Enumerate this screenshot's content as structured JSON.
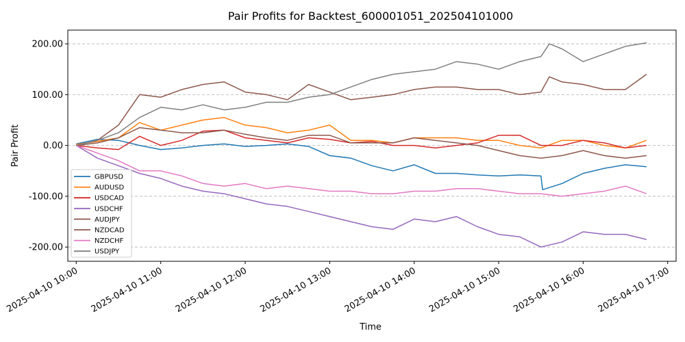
{
  "chart_data": {
    "type": "line",
    "title": "Pair Profits for Backtest_600001051_202504101000",
    "xlabel": "Time",
    "ylabel": "Pair Profit",
    "x_tick_labels": [
      "2025-04-10 10:00",
      "2025-04-10 11:00",
      "2025-04-10 12:00",
      "2025-04-10 13:00",
      "2025-04-10 14:00",
      "2025-04-10 15:00",
      "2025-04-10 16:00",
      "2025-04-10 17:00"
    ],
    "y_tick_labels": [
      "-200.00",
      "-100.00",
      "0.00",
      "100.00",
      "200.00"
    ],
    "y_ticks": [
      -200,
      -100,
      0,
      100,
      200
    ],
    "xlim": [
      -0.1,
      7.1
    ],
    "ylim": [
      -228,
      227
    ],
    "grid": "horizontal dashed",
    "legend_position": "lower-left",
    "series": [
      {
        "name": "GBPUSD",
        "color": "#1f77b4",
        "x": [
          0,
          0.25,
          0.5,
          0.75,
          1.0,
          1.25,
          1.5,
          1.75,
          2.0,
          2.25,
          2.5,
          2.75,
          3.0,
          3.25,
          3.5,
          3.75,
          4.0,
          4.25,
          4.5,
          4.75,
          5.0,
          5.25,
          5.5,
          5.52,
          5.75,
          6.0,
          6.25,
          6.5,
          6.75
        ],
        "y": [
          3,
          12,
          10,
          0,
          -8,
          -5,
          0,
          3,
          -2,
          0,
          3,
          -2,
          -20,
          -25,
          -40,
          -50,
          -38,
          -55,
          -55,
          -58,
          -60,
          -58,
          -60,
          -87,
          -75,
          -55,
          -45,
          -38,
          -42
        ]
      },
      {
        "name": "AUDUSD",
        "color": "#ff7f0e",
        "x": [
          0,
          0.25,
          0.5,
          0.75,
          1.0,
          1.25,
          1.5,
          1.75,
          2.0,
          2.25,
          2.5,
          2.75,
          3.0,
          3.25,
          3.5,
          3.75,
          4.0,
          4.25,
          4.5,
          4.75,
          5.0,
          5.25,
          5.5,
          5.75,
          6.0,
          6.25,
          6.5,
          6.75
        ],
        "y": [
          2,
          8,
          15,
          45,
          30,
          40,
          50,
          55,
          40,
          35,
          25,
          30,
          40,
          10,
          10,
          5,
          15,
          15,
          15,
          10,
          10,
          0,
          -5,
          10,
          10,
          0,
          -5,
          10
        ]
      },
      {
        "name": "USDCAD",
        "color": "#d62728",
        "x": [
          0,
          0.25,
          0.5,
          0.75,
          1.0,
          1.25,
          1.5,
          1.75,
          2.0,
          2.25,
          2.5,
          2.75,
          3.0,
          3.25,
          3.5,
          3.75,
          4.0,
          4.25,
          4.5,
          4.75,
          5.0,
          5.25,
          5.5,
          5.75,
          6.0,
          6.25,
          6.5,
          6.75
        ],
        "y": [
          0,
          -5,
          -8,
          18,
          0,
          10,
          28,
          30,
          15,
          10,
          5,
          15,
          12,
          5,
          8,
          0,
          0,
          -5,
          0,
          5,
          20,
          20,
          0,
          0,
          10,
          5,
          -5,
          0
        ]
      },
      {
        "name": "USDCHF",
        "color": "#9467bd",
        "x": [
          0,
          0.25,
          0.5,
          0.75,
          1.0,
          1.25,
          1.5,
          1.75,
          2.0,
          2.25,
          2.5,
          2.75,
          3.0,
          3.25,
          3.5,
          3.75,
          4.0,
          4.25,
          4.5,
          4.75,
          5.0,
          5.25,
          5.5,
          5.75,
          6.0,
          6.25,
          6.5,
          6.75
        ],
        "y": [
          0,
          -25,
          -40,
          -55,
          -65,
          -80,
          -90,
          -95,
          -105,
          -115,
          -120,
          -130,
          -140,
          -150,
          -160,
          -165,
          -145,
          -150,
          -140,
          -160,
          -175,
          -180,
          -200,
          -190,
          -170,
          -175,
          -175,
          -185
        ]
      },
      {
        "name": "AUDJPY",
        "color": "#8c564b",
        "x": [
          0,
          0.25,
          0.5,
          0.75,
          1.0,
          1.25,
          1.5,
          1.75,
          2.0,
          2.25,
          2.5,
          2.75,
          3.0,
          3.25,
          3.5,
          3.75,
          4.0,
          4.25,
          4.5,
          4.75,
          5.0,
          5.25,
          5.5,
          5.75,
          6.0,
          6.25,
          6.5,
          6.75
        ],
        "y": [
          0,
          5,
          15,
          35,
          30,
          25,
          25,
          30,
          22,
          15,
          10,
          20,
          20,
          5,
          5,
          5,
          15,
          10,
          5,
          0,
          -10,
          -20,
          -25,
          -20,
          -10,
          -20,
          -25,
          -20
        ]
      },
      {
        "name": "NZDCAD",
        "color": "#8c564b",
        "x": [
          0,
          0.25,
          0.5,
          0.75,
          1.0,
          1.25,
          1.5,
          1.75,
          2.0,
          2.25,
          2.5,
          2.75,
          3.0,
          3.25,
          3.5,
          3.75,
          4.0,
          4.25,
          4.5,
          4.75,
          5.0,
          5.25,
          5.5,
          5.6,
          5.75,
          6.0,
          6.25,
          6.5,
          6.75
        ],
        "y": [
          0,
          10,
          40,
          100,
          95,
          110,
          120,
          125,
          105,
          100,
          90,
          120,
          105,
          90,
          95,
          100,
          110,
          115,
          115,
          110,
          110,
          100,
          105,
          135,
          125,
          120,
          110,
          110,
          140
        ]
      },
      {
        "name": "NZDCHF",
        "color": "#e377c2",
        "x": [
          0,
          0.25,
          0.5,
          0.75,
          1.0,
          1.25,
          1.5,
          1.75,
          2.0,
          2.25,
          2.5,
          2.75,
          3.0,
          3.25,
          3.5,
          3.75,
          4.0,
          4.25,
          4.5,
          4.75,
          5.0,
          5.25,
          5.5,
          5.75,
          6.0,
          6.25,
          6.5,
          6.75
        ],
        "y": [
          0,
          -15,
          -30,
          -50,
          -50,
          -60,
          -75,
          -80,
          -75,
          -85,
          -80,
          -85,
          -90,
          -90,
          -95,
          -95,
          -90,
          -90,
          -85,
          -85,
          -90,
          -95,
          -95,
          -100,
          -95,
          -90,
          -80,
          -95
        ]
      },
      {
        "name": "USDJPY",
        "color": "#7f7f7f",
        "x": [
          0,
          0.25,
          0.5,
          0.75,
          1.0,
          1.25,
          1.5,
          1.75,
          2.0,
          2.25,
          2.5,
          2.75,
          3.0,
          3.25,
          3.5,
          3.75,
          4.0,
          4.25,
          4.5,
          4.75,
          5.0,
          5.25,
          5.5,
          5.6,
          5.75,
          6.0,
          6.25,
          6.5,
          6.75
        ],
        "y": [
          0,
          10,
          25,
          55,
          75,
          70,
          80,
          70,
          75,
          85,
          85,
          95,
          100,
          115,
          130,
          140,
          145,
          150,
          165,
          160,
          150,
          165,
          175,
          200,
          190,
          165,
          180,
          195,
          202
        ]
      }
    ]
  }
}
